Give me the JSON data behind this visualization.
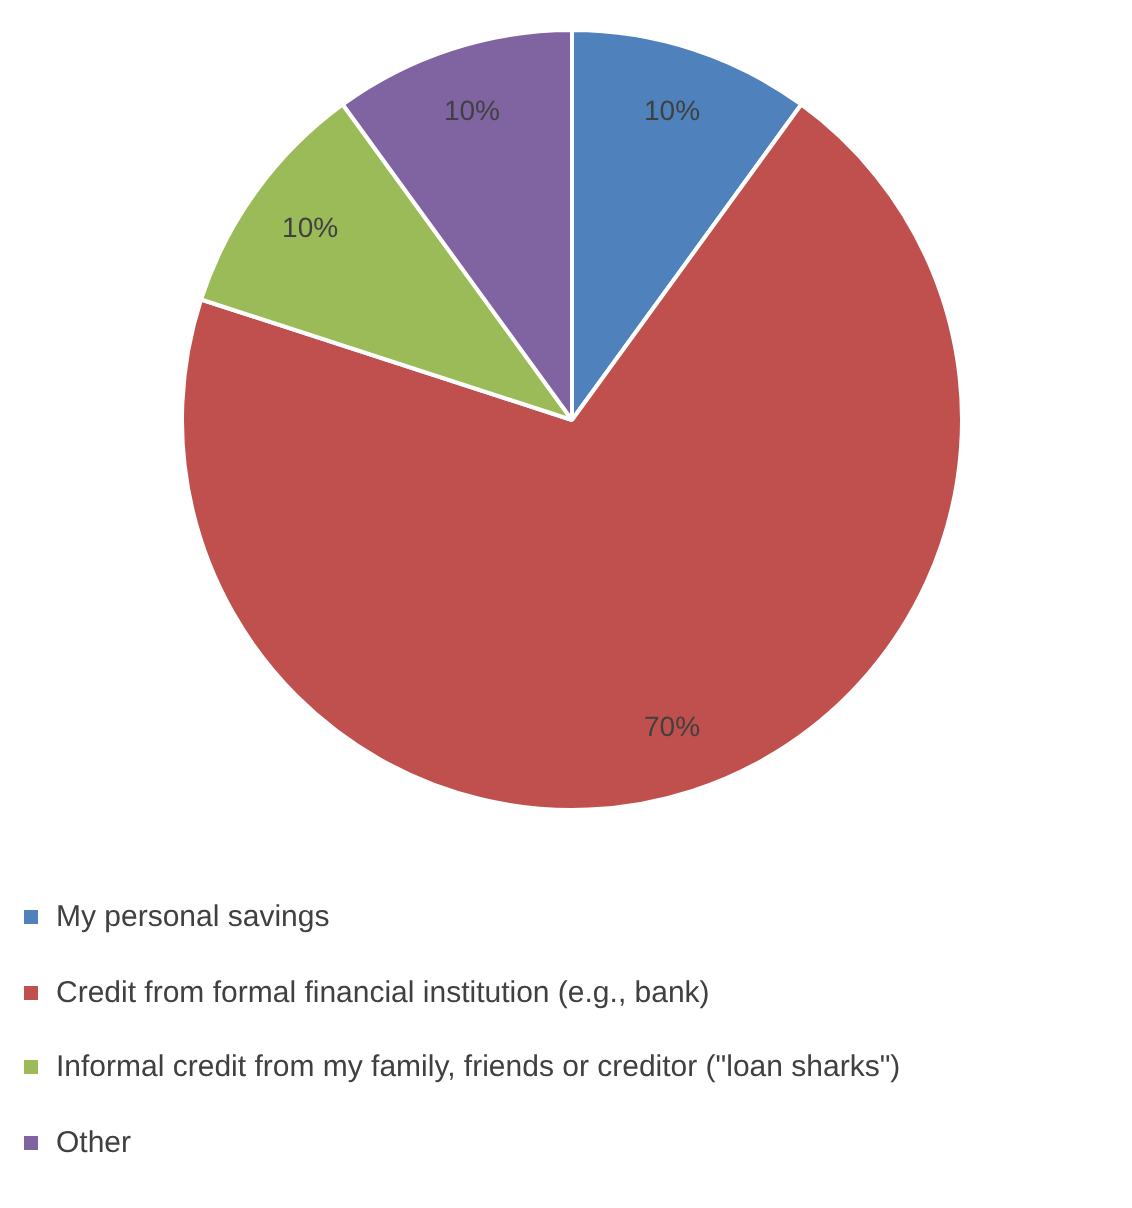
{
  "chart_data": {
    "type": "pie",
    "categories": [
      "My personal savings",
      "Credit from formal financial institution (e.g., bank)",
      "Informal credit from my family, friends or creditor (\"loan sharks\")",
      "Other"
    ],
    "values": [
      10,
      70,
      10,
      10
    ],
    "colors": [
      "#4f81bd",
      "#c0504d",
      "#9bbb59",
      "#8064a2"
    ],
    "value_labels": [
      "10%",
      "70%",
      "10%",
      "10%"
    ],
    "legend": "bottom"
  }
}
